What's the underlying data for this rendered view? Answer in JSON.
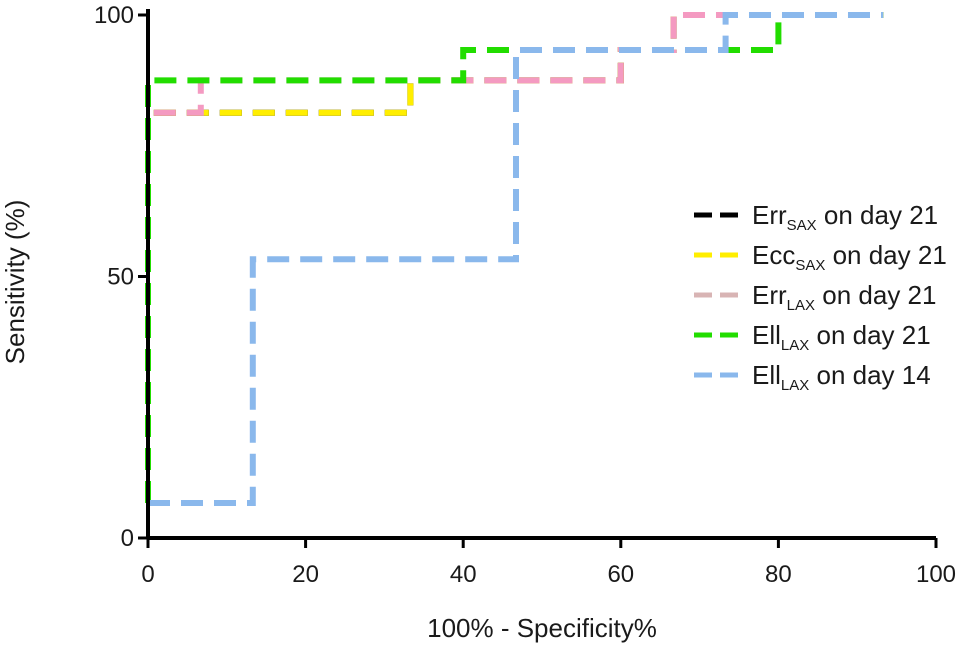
{
  "chart_data": {
    "type": "line",
    "title": "",
    "xlabel": "100% - Specificity%",
    "ylabel": "Sensitivity (%)",
    "xlim": [
      0,
      100
    ],
    "ylim": [
      0,
      100
    ],
    "x_ticks": [
      0,
      20,
      40,
      60,
      80,
      100
    ],
    "y_ticks": [
      0,
      50,
      100
    ],
    "grid": false,
    "legend_position": "right",
    "line_style": "dashed step",
    "series": [
      {
        "name": "Err on day 21",
        "legend_base": "Err",
        "legend_sub": "SAX",
        "legend_suffix": " on day 21",
        "color": "#000000",
        "x": [
          0,
          0,
          33.3,
          33.3,
          40,
          40,
          46.7,
          46.7,
          60,
          60,
          66.7,
          66.7,
          93.3
        ],
        "y": [
          6.7,
          81.3,
          81.3,
          87.5,
          87.5,
          87.5,
          87.5,
          87.5,
          87.5,
          93.3,
          93.3,
          100,
          100
        ]
      },
      {
        "name": "Ecc on day 21",
        "legend_base": "Ecc",
        "legend_sub": "SAX",
        "legend_suffix": " on day 21",
        "color": "#ffee00",
        "x": [
          0,
          0,
          33.3,
          33.3,
          60,
          60,
          66.7,
          66.7,
          93.3
        ],
        "y": [
          6.7,
          81.3,
          81.3,
          87.5,
          87.5,
          93.3,
          93.3,
          100,
          100
        ]
      },
      {
        "name": "Err on day 21",
        "legend_base": "Err",
        "legend_sub": "LAX",
        "legend_suffix": " on day 21",
        "color": "#f49ac1",
        "legend_color": "#d8b4b4",
        "x": [
          0,
          0,
          6.7,
          6.7,
          46.7,
          46.7,
          60,
          60,
          66.7,
          66.7,
          93.3
        ],
        "y": [
          6.7,
          81.3,
          81.3,
          87.5,
          87.5,
          87.5,
          87.5,
          93.3,
          93.3,
          100,
          100
        ]
      },
      {
        "name": "Ell on day 21",
        "legend_base": "Ell",
        "legend_sub": "LAX",
        "legend_suffix": " on day 21",
        "color": "#22dd00",
        "x": [
          0,
          0,
          40,
          40,
          80,
          80,
          93.3
        ],
        "y": [
          6.7,
          87.5,
          87.5,
          93.3,
          93.3,
          100,
          100
        ]
      },
      {
        "name": "Ell on day 14",
        "legend_base": "Ell",
        "legend_sub": "LAX",
        "legend_suffix": " on day 14",
        "color": "#8ab8ec",
        "x": [
          0,
          13.3,
          13.3,
          46.7,
          46.7,
          73.3,
          73.3,
          93.3
        ],
        "y": [
          6.7,
          6.7,
          53.3,
          53.3,
          93.3,
          93.3,
          100,
          100
        ]
      }
    ]
  }
}
